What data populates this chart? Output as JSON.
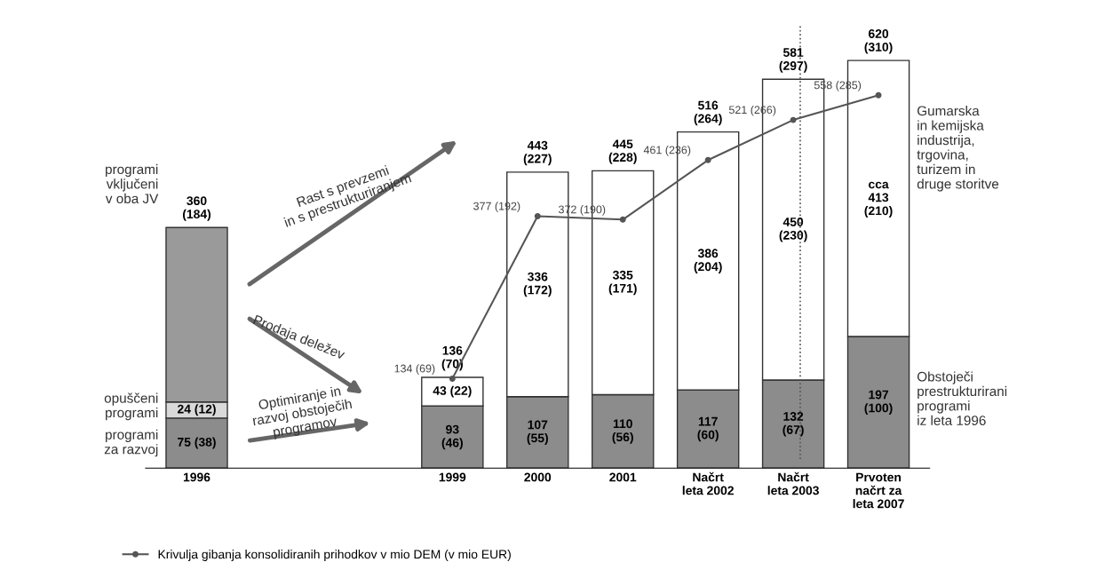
{
  "chart_data": {
    "type": "bar",
    "stacked": true,
    "tick_labels": "x",
    "grid": false,
    "legend": "bottom",
    "categories": [
      "1996",
      null,
      null,
      "1999",
      "2000",
      "2001",
      "Načrt\nleta 2002",
      "Načrt\nleta 2003",
      "Prvoten\nnačrt za\nleta 2007"
    ],
    "series": [
      {
        "colors": [
          "#8c8c8c",
          null,
          null,
          "#8c8c8c",
          "#8c8c8c",
          "#8c8c8c",
          "#8c8c8c",
          "#8c8c8c",
          "#8c8c8c"
        ],
        "values": [
          75,
          null,
          null,
          93,
          107,
          110,
          117,
          132,
          197
        ],
        "value_labels": [
          "75 (38)",
          null,
          null,
          "93\n(46)",
          "107\n(55)",
          "110\n(56)",
          "117\n(60)",
          "132\n(67)",
          "197\n(100)"
        ]
      },
      {
        "colors": [
          "#d9d9d9",
          null,
          null,
          "#ffffff",
          "#ffffff",
          "#ffffff",
          "#ffffff",
          "#ffffff",
          "#ffffff"
        ],
        "values": [
          24,
          null,
          null,
          43,
          336,
          335,
          386,
          450,
          413
        ],
        "value_labels": [
          "24 (12)",
          null,
          null,
          "43 (22)",
          "336\n(172)",
          "335\n(171)",
          "386\n(204)",
          "450\n(230)",
          "cca\n413\n(210)"
        ]
      },
      {
        "colors": [
          "#9a9a9a",
          null,
          null,
          null,
          null,
          null,
          null,
          null,
          null
        ],
        "values": [
          261,
          null,
          null,
          null,
          null,
          null,
          null,
          null,
          null
        ]
      },
      {
        "type": "line",
        "name": "Krivulja gibanja konsolidiranih prihodkov v mio DEM (v mio EUR)",
        "color": "#555555",
        "marker": "circle",
        "values": [
          null,
          null,
          null,
          134,
          377,
          372,
          461,
          521,
          558
        ],
        "value_labels": [
          null,
          null,
          null,
          "134 (69)",
          "377 (192)",
          "372 (190)",
          "461 (236)",
          "521 (266)",
          "558 (285)"
        ]
      }
    ],
    "totals": [
      "360\n(184)",
      null,
      null,
      "136\n(70)",
      "443\n(227)",
      "445\n(228)",
      "516\n(264)",
      "581\n(297)",
      "620\n(310)"
    ],
    "annotations": [
      "programi\nvključeni\nv oba JV",
      "opuščeni\nprogrami",
      "programi\nza razvoj",
      "Gumarska\nin kemijska\nindustrija,\ntrgovina,\nturizem in\ndruge storitve",
      "Obstoječi\nprestrukturirani\nprogrami\niz leta 1996",
      "Rast s prevzemi\nin s prestrukturiranjem",
      "Prodaja deležev",
      "Optimiranje in\nrazvoj obstoječih\nprogramov"
    ]
  }
}
